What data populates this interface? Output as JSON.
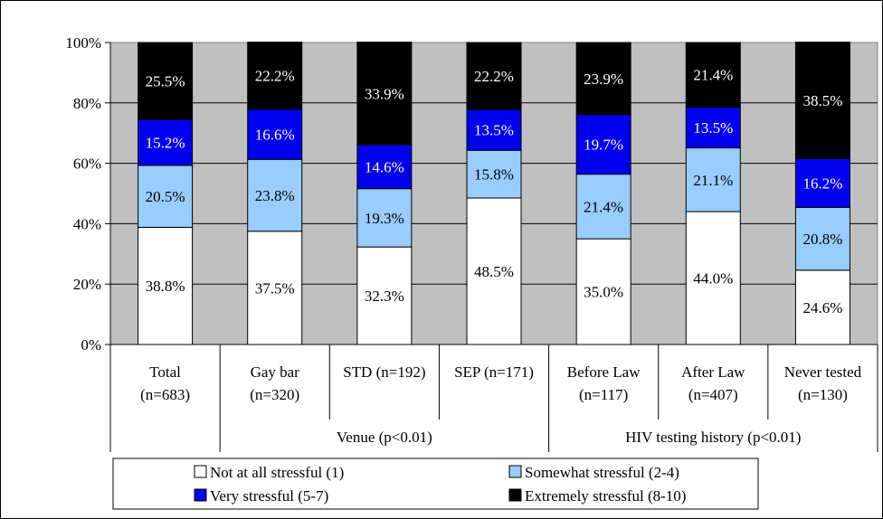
{
  "chart_data": {
    "type": "bar",
    "stacked": true,
    "percent_stacked": true,
    "title": "",
    "xlabel": "",
    "ylabel": "",
    "ylim": [
      0,
      100
    ],
    "y_ticks": [
      "0%",
      "20%",
      "40%",
      "60%",
      "80%",
      "100%"
    ],
    "grid": true,
    "plot_background": "#c0c0c0",
    "legend_position": "bottom",
    "categories": [
      {
        "line1": "Total",
        "line2": "(n=683)"
      },
      {
        "line1": "Gay bar",
        "line2": "(n=320)"
      },
      {
        "line1": "STD (n=192)",
        "line2": ""
      },
      {
        "line1": "SEP (n=171)",
        "line2": ""
      },
      {
        "line1": "Before Law",
        "line2": "(n=117)"
      },
      {
        "line1": "After Law",
        "line2": "(n=407)"
      },
      {
        "line1": "Never tested",
        "line2": "(n=130)"
      }
    ],
    "groups": [
      {
        "label": "Venue (p<0.01)",
        "start": 1,
        "end": 3
      },
      {
        "label": "HIV testing history (p<0.01)",
        "start": 4,
        "end": 6
      }
    ],
    "series": [
      {
        "name": "Not at all stressful (1)",
        "color": "#ffffff",
        "text_color": "#000000",
        "values": [
          38.8,
          37.5,
          32.3,
          48.5,
          35.0,
          44.0,
          24.6
        ],
        "labels": [
          "38.8%",
          "37.5%",
          "32.3%",
          "48.5%",
          "35.0%",
          "44.0%",
          "24.6%"
        ]
      },
      {
        "name": "Somewhat stressful (2-4)",
        "color": "#99ccff",
        "text_color": "#000000",
        "values": [
          20.5,
          23.8,
          19.3,
          15.8,
          21.4,
          21.1,
          20.8
        ],
        "labels": [
          "20.5%",
          "23.8%",
          "19.3%",
          "15.8%",
          "21.4%",
          "21.1%",
          "20.8%"
        ]
      },
      {
        "name": "Very stressful (5-7)",
        "color": "#0000ee",
        "text_color": "#ffffff",
        "values": [
          15.2,
          16.6,
          14.6,
          13.5,
          19.7,
          13.5,
          16.2
        ],
        "labels": [
          "15.2%",
          "16.6%",
          "14.6%",
          "13.5%",
          "19.7%",
          "13.5%",
          "16.2%"
        ]
      },
      {
        "name": "Extremely stressful (8-10)",
        "color": "#000000",
        "text_color": "#ffffff",
        "values": [
          25.5,
          22.2,
          33.9,
          22.2,
          23.9,
          21.4,
          38.5
        ],
        "labels": [
          "25.5%",
          "22.2%",
          "33.9%",
          "22.2%",
          "23.9%",
          "21.4%",
          "38.5%"
        ]
      }
    ]
  }
}
